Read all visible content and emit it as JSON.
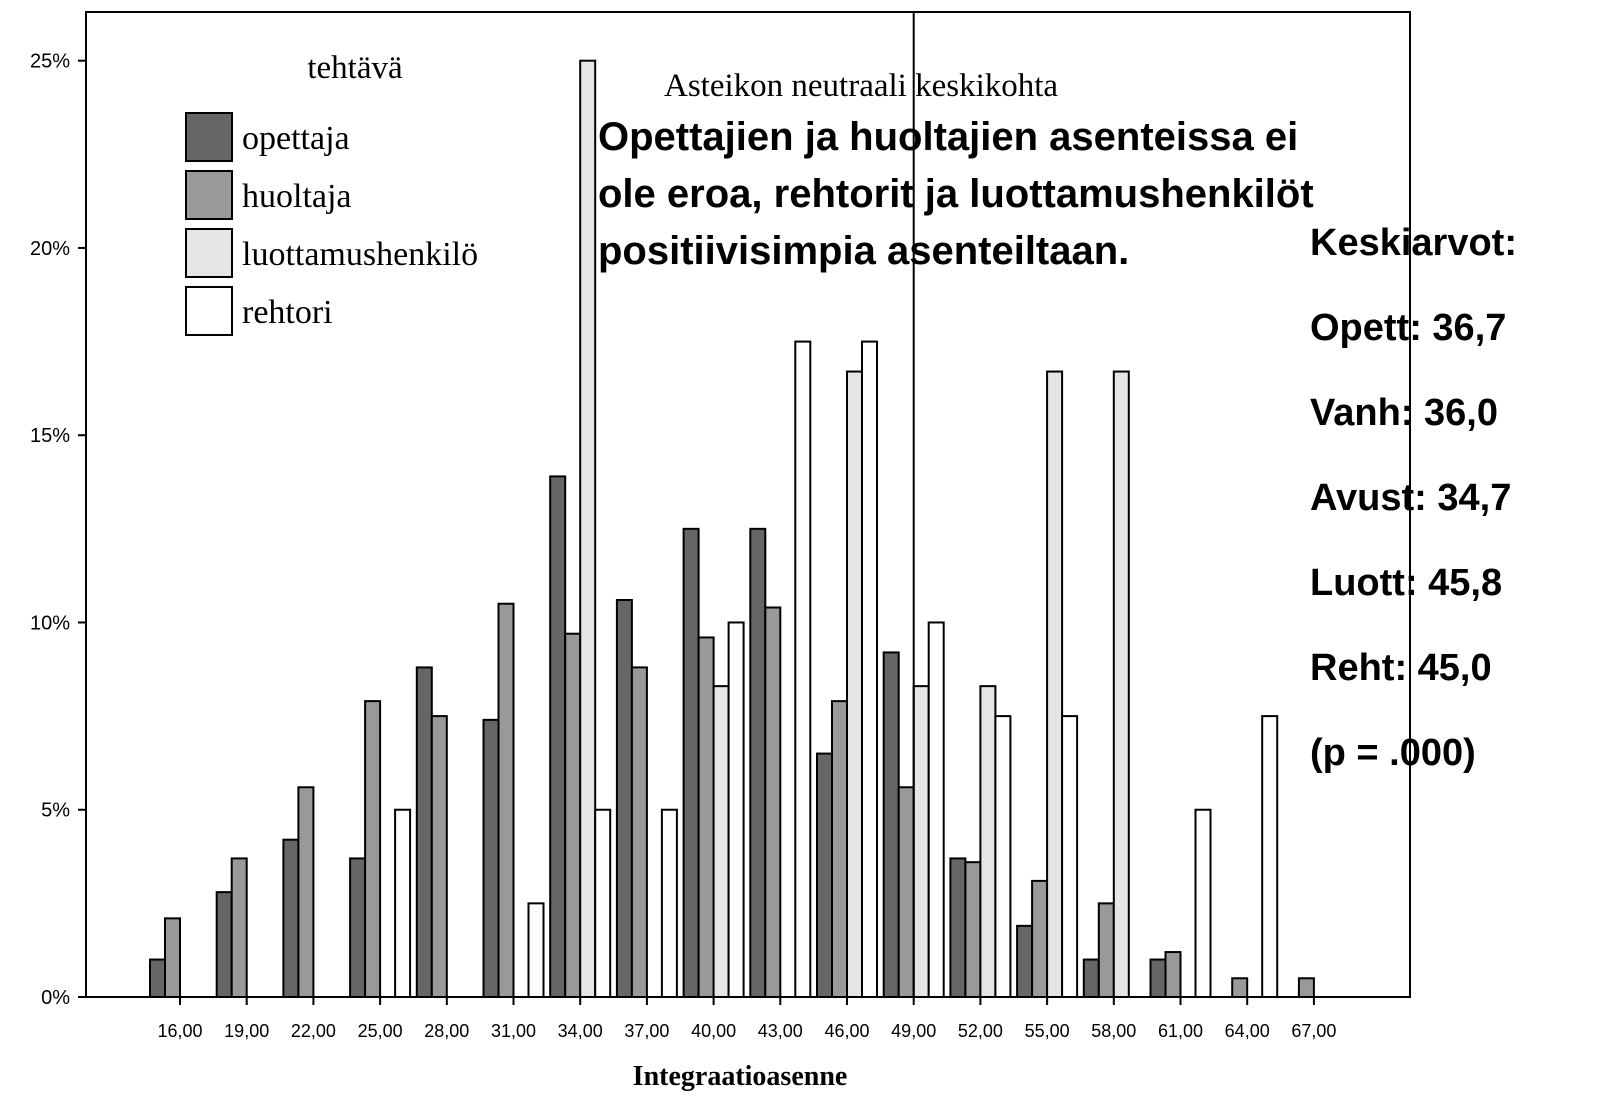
{
  "chart_data": {
    "type": "bar",
    "categories": [
      "16,00",
      "19,00",
      "22,00",
      "25,00",
      "28,00",
      "31,00",
      "34,00",
      "37,00",
      "40,00",
      "43,00",
      "46,00",
      "49,00",
      "52,00",
      "55,00",
      "58,00",
      "61,00",
      "64,00",
      "67,00"
    ],
    "series": [
      {
        "name": "opettaja",
        "color": "#666666",
        "values": [
          1.0,
          2.8,
          4.2,
          3.7,
          8.8,
          7.4,
          13.9,
          10.6,
          12.5,
          12.5,
          6.5,
          9.2,
          3.7,
          1.9,
          1.0,
          1.0,
          0,
          0
        ]
      },
      {
        "name": "huoltaja",
        "color": "#999999",
        "values": [
          2.1,
          3.7,
          5.6,
          7.9,
          7.5,
          10.5,
          9.7,
          8.8,
          9.6,
          10.4,
          7.9,
          5.6,
          3.6,
          3.1,
          2.5,
          1.2,
          0.5,
          0.5
        ]
      },
      {
        "name": "luottamushenkilö",
        "color": "#e5e5e5",
        "values": [
          0,
          0,
          0,
          0,
          0,
          0,
          25,
          0,
          8.3,
          0,
          16.7,
          8.3,
          8.3,
          16.7,
          16.7,
          0,
          0,
          0
        ]
      },
      {
        "name": "rehtori",
        "color": "#ffffff",
        "values": [
          0,
          0,
          0,
          5.0,
          0,
          2.5,
          5.0,
          5.0,
          10.0,
          17.5,
          17.5,
          10.0,
          7.5,
          7.5,
          0,
          5.0,
          7.5,
          0
        ]
      }
    ],
    "legend_title": "tehtävä",
    "x_label": "Integraatioasenne",
    "ylim": [
      0,
      26.3
    ],
    "yticks": [
      {
        "value": 0,
        "label": "0%"
      },
      {
        "value": 5,
        "label": "5%"
      },
      {
        "value": 10,
        "label": "10%"
      },
      {
        "value": 15,
        "label": "15%"
      },
      {
        "value": 20,
        "label": "20%"
      },
      {
        "value": 25,
        "label": "25%"
      }
    ],
    "reference_line": {
      "category": "49,00",
      "label": "Asteikon neutraali keskikohta"
    },
    "headline": [
      "Opettajien ja huoltajien asenteissa ei",
      "ole eroa, rehtorit ja luottamushenkilöt",
      "positiivisimpia asenteiltaan."
    ],
    "stats": [
      "Keskiarvot:",
      "Opett: 36,7",
      "Vanh: 36,0",
      "Avust: 34,7",
      "Luott: 45,8",
      "Reht: 45,0",
      "(p = .000)"
    ]
  }
}
